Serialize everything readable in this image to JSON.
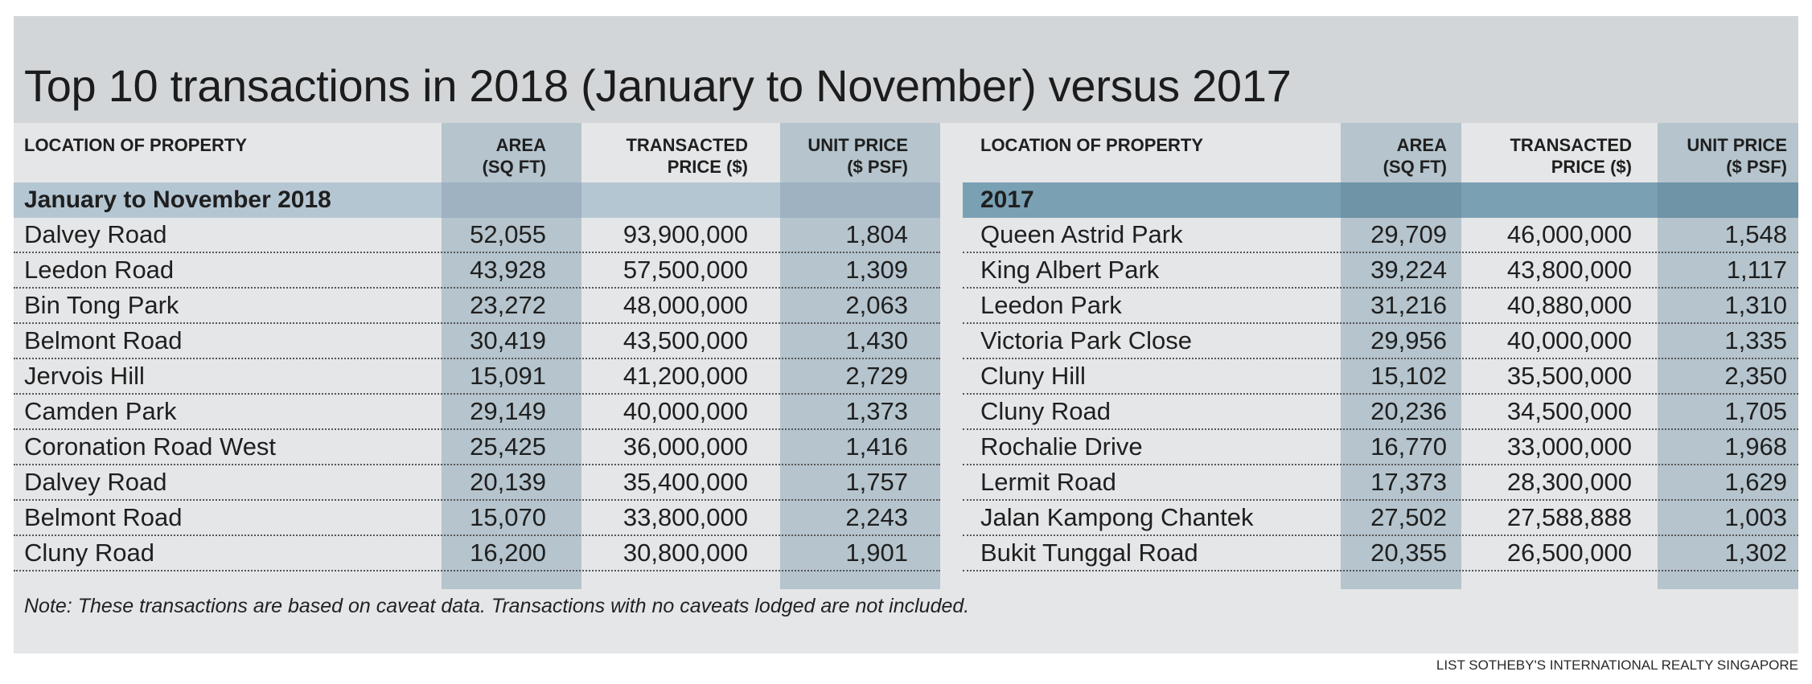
{
  "title": "Top 10 transactions in 2018 (January to November) versus 2017",
  "headers": {
    "location": "LOCATION OF PROPERTY",
    "area_line1": "AREA",
    "area_line2": "(SQ FT)",
    "price_line1": "TRANSACTED",
    "price_line2": "PRICE ($)",
    "unit_line1": "UNIT PRICE",
    "unit_line2": "($ PSF)"
  },
  "left": {
    "section": "January to November 2018",
    "rows": [
      {
        "location": "Dalvey Road",
        "area": "52,055",
        "price": "93,900,000",
        "psf": "1,804"
      },
      {
        "location": "Leedon Road",
        "area": "43,928",
        "price": "57,500,000",
        "psf": "1,309"
      },
      {
        "location": "Bin Tong Park",
        "area": "23,272",
        "price": "48,000,000",
        "psf": "2,063"
      },
      {
        "location": "Belmont Road",
        "area": "30,419",
        "price": "43,500,000",
        "psf": "1,430"
      },
      {
        "location": "Jervois Hill",
        "area": "15,091",
        "price": "41,200,000",
        "psf": "2,729"
      },
      {
        "location": "Camden Park",
        "area": "29,149",
        "price": "40,000,000",
        "psf": "1,373"
      },
      {
        "location": "Coronation Road West",
        "area": "25,425",
        "price": "36,000,000",
        "psf": "1,416"
      },
      {
        "location": "Dalvey Road",
        "area": "20,139",
        "price": "35,400,000",
        "psf": "1,757"
      },
      {
        "location": "Belmont Road",
        "area": "15,070",
        "price": "33,800,000",
        "psf": "2,243"
      },
      {
        "location": "Cluny Road",
        "area": "16,200",
        "price": "30,800,000",
        "psf": "1,901"
      }
    ]
  },
  "right": {
    "section": "2017",
    "rows": [
      {
        "location": "Queen Astrid Park",
        "area": "29,709",
        "price": "46,000,000",
        "psf": "1,548"
      },
      {
        "location": "King Albert Park",
        "area": "39,224",
        "price": "43,800,000",
        "psf": "1,117"
      },
      {
        "location": "Leedon Park",
        "area": "31,216",
        "price": "40,880,000",
        "psf": "1,310"
      },
      {
        "location": "Victoria Park Close",
        "area": "29,956",
        "price": "40,000,000",
        "psf": "1,335"
      },
      {
        "location": "Cluny Hill",
        "area": "15,102",
        "price": "35,500,000",
        "psf": "2,350"
      },
      {
        "location": "Cluny Road",
        "area": "20,236",
        "price": "34,500,000",
        "psf": "1,705"
      },
      {
        "location": "Rochalie Drive",
        "area": "16,770",
        "price": "33,000,000",
        "psf": "1,968"
      },
      {
        "location": "Lermit Road",
        "area": "17,373",
        "price": "28,300,000",
        "psf": "1,629"
      },
      {
        "location": "Jalan Kampong Chantek",
        "area": "27,502",
        "price": "27,588,888",
        "psf": "1,003"
      },
      {
        "location": "Bukit Tunggal Road",
        "area": "20,355",
        "price": "26,500,000",
        "psf": "1,302"
      }
    ]
  },
  "note": "Note: These transactions are based on caveat data. Transactions with no caveats lodged are not included.",
  "source": "LIST SOTHEBY'S INTERNATIONAL REALTY SINGAPORE",
  "colors": {
    "panel": "#e5e6e8",
    "title_band": "#d2d6d9",
    "column_band": "#b5c4cd",
    "section_2018": "#b5c6d3",
    "section_2017": "#7aa0b4"
  }
}
